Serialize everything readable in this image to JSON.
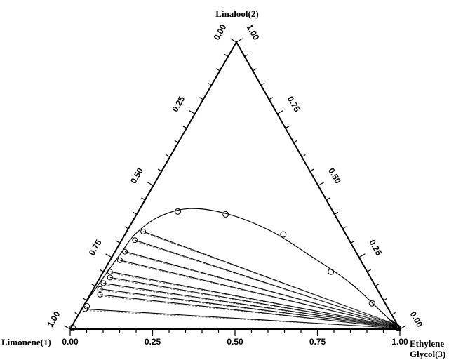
{
  "chart_data": {
    "type": "scatter",
    "subtype": "ternary",
    "title": "",
    "components": {
      "left": "Limonene(1)",
      "top": "Linalool(2)",
      "right_line1": "Ethylene",
      "right_line2": "Glycol(3)"
    },
    "axes": {
      "bottom": {
        "ticks": [
          "0.00",
          "0.25",
          "0.50",
          "0.75",
          "1.00"
        ]
      },
      "left": {
        "ticks": [
          "0.00",
          "0.25",
          "0.50",
          "0.75",
          "1.00"
        ]
      },
      "right": {
        "ticks": [
          "0.00",
          "0.25",
          "0.50",
          "0.75",
          "1.00"
        ]
      }
    },
    "binodal_curve": [
      {
        "x1": 0.98,
        "x2": 0.02
      },
      {
        "x1": 0.92,
        "x2": 0.08
      },
      {
        "x1": 0.81,
        "x2": 0.18
      },
      {
        "x1": 0.72,
        "x2": 0.26
      },
      {
        "x1": 0.64,
        "x2": 0.33
      },
      {
        "x1": 0.54,
        "x2": 0.39
      },
      {
        "x1": 0.43,
        "x2": 0.42
      },
      {
        "x1": 0.32,
        "x2": 0.4
      },
      {
        "x1": 0.22,
        "x2": 0.34
      },
      {
        "x1": 0.14,
        "x2": 0.25
      },
      {
        "x1": 0.07,
        "x2": 0.16
      },
      {
        "x1": 0.03,
        "x2": 0.07
      },
      {
        "x1": 0.005,
        "x2": 0.01
      }
    ],
    "experimental_points": [
      {
        "x1": 0.99,
        "x2": 0.005
      },
      {
        "x1": 0.91,
        "x2": 0.08
      },
      {
        "x1": 0.47,
        "x2": 0.41
      },
      {
        "x1": 0.33,
        "x2": 0.4
      },
      {
        "x1": 0.19,
        "x2": 0.33
      },
      {
        "x1": 0.11,
        "x2": 0.2
      },
      {
        "x1": 0.04,
        "x2": 0.09
      }
    ],
    "tie_lines": [
      {
        "raffinate": {
          "x1": 0.92,
          "x2": 0.07
        },
        "extract": {
          "x1": 0.002,
          "x2": 0.003
        }
      },
      {
        "raffinate": {
          "x1": 0.85,
          "x2": 0.12
        },
        "extract": {
          "x1": 0.003,
          "x2": 0.004
        }
      },
      {
        "raffinate": {
          "x1": 0.84,
          "x2": 0.14
        },
        "extract": {
          "x1": 0.004,
          "x2": 0.006
        }
      },
      {
        "raffinate": {
          "x1": 0.82,
          "x2": 0.16
        },
        "extract": {
          "x1": 0.005,
          "x2": 0.007
        }
      },
      {
        "raffinate": {
          "x1": 0.79,
          "x2": 0.18
        },
        "extract": {
          "x1": 0.006,
          "x2": 0.008
        }
      },
      {
        "raffinate": {
          "x1": 0.78,
          "x2": 0.2
        },
        "extract": {
          "x1": 0.007,
          "x2": 0.01
        }
      },
      {
        "raffinate": {
          "x1": 0.73,
          "x2": 0.24
        },
        "extract": {
          "x1": 0.009,
          "x2": 0.012
        }
      },
      {
        "raffinate": {
          "x1": 0.7,
          "x2": 0.27
        },
        "extract": {
          "x1": 0.011,
          "x2": 0.015
        }
      },
      {
        "raffinate": {
          "x1": 0.65,
          "x2": 0.31
        },
        "extract": {
          "x1": 0.013,
          "x2": 0.018
        }
      },
      {
        "raffinate": {
          "x1": 0.61,
          "x2": 0.34
        },
        "extract": {
          "x1": 0.015,
          "x2": 0.022
        }
      }
    ],
    "colors": {
      "lines": "#000000",
      "background": "#ffffff"
    }
  }
}
